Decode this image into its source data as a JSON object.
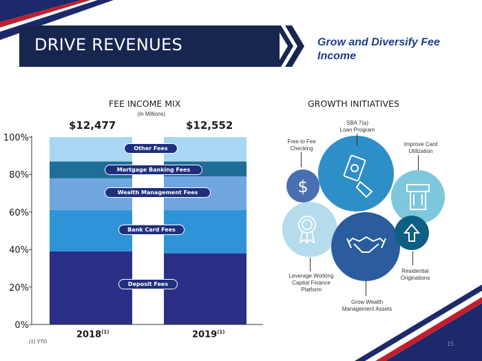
{
  "banner": {
    "title": "DRIVE REVENUES",
    "tagline": "Grow and Diversify Fee Income"
  },
  "fee_mix": {
    "title": "FEE INCOME MIX",
    "subtitle": "(in Millions)",
    "totals": [
      "$12,477",
      "$12,552"
    ],
    "footnote": "(1)  YTD",
    "footnote_marker": "(1)"
  },
  "chart_data": {
    "type": "bar",
    "stacked": true,
    "categories": [
      "2018",
      "2019"
    ],
    "series": [
      {
        "name": "Deposit Fees",
        "values": [
          39,
          38
        ],
        "color": "#2a2f86"
      },
      {
        "name": "Bank Card Fees",
        "values": [
          22,
          23
        ],
        "color": "#2e94d7"
      },
      {
        "name": "Wealth Management Fees",
        "values": [
          17,
          18
        ],
        "color": "#6fa6e0"
      },
      {
        "name": "Mortgage Banking Fees",
        "values": [
          9,
          8
        ],
        "color": "#1e6e97"
      },
      {
        "name": "Other Fees",
        "values": [
          13,
          13
        ],
        "color": "#a9d6f2"
      }
    ],
    "yticks": [
      "0%",
      "20%",
      "40%",
      "60%",
      "80%",
      "100%"
    ],
    "ylim": [
      0,
      100
    ]
  },
  "growth": {
    "title": "GROWTH INITIATIVES",
    "labels": {
      "sba": "SBA 7(a)\nLoan Program",
      "free_checking": "Free to Fee\nChecking",
      "improve_card": "Improve Card\nUtilization",
      "leverage": "Leverage Working\nCapital Finance\nPlatform",
      "residential": "Residential\nOriginations",
      "wealth": "Grow Wealth\nManagement Assets"
    },
    "icons": [
      "dollar-icon",
      "money-hand-icon",
      "atm-card-icon",
      "award-ribbon-icon",
      "handshake-icon",
      "up-arrow-icon"
    ]
  },
  "page_number": "15"
}
